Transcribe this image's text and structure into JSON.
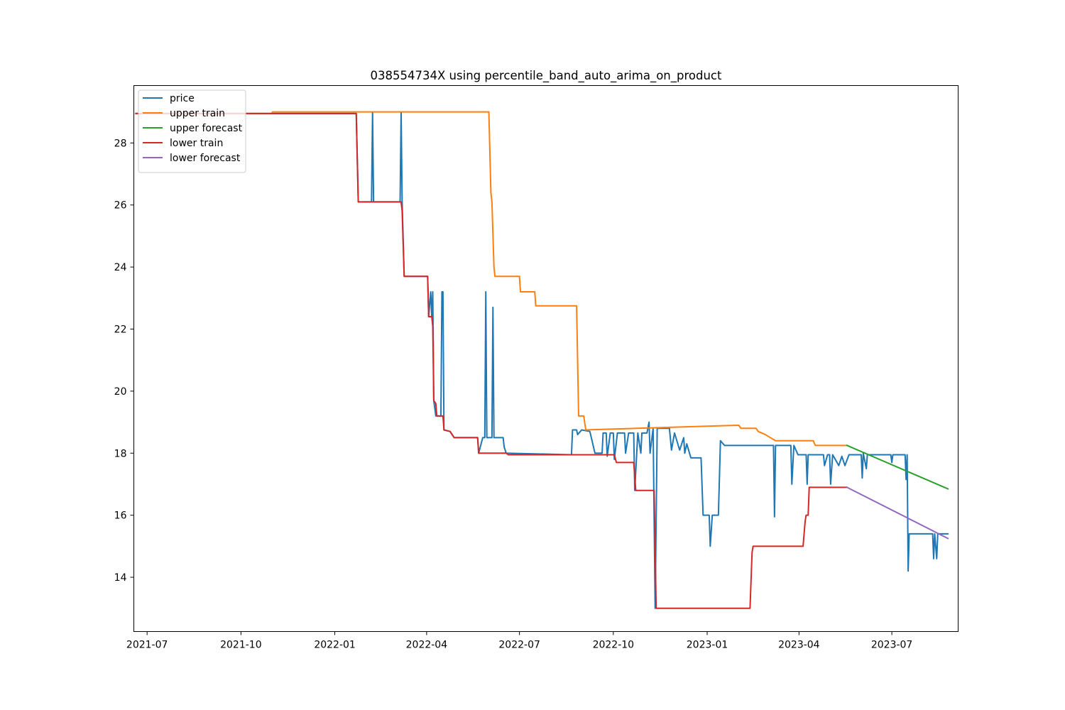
{
  "chart_data": {
    "type": "line",
    "title": "038554734X using percentile_band_auto_arima_on_product",
    "xlabel": "",
    "ylabel": "",
    "xlim": [
      "2021-06-18",
      "2023-09-04"
    ],
    "ylim": [
      12.25,
      29.85
    ],
    "x_ticks": [
      "2021-07-01",
      "2021-10-01",
      "2022-01-01",
      "2022-04-01",
      "2022-07-01",
      "2022-10-01",
      "2023-01-01",
      "2023-04-01",
      "2023-07-01"
    ],
    "x_tick_labels": [
      "2021-07",
      "2021-10",
      "2022-01",
      "2022-04",
      "2022-07",
      "2022-10",
      "2023-01",
      "2023-04",
      "2023-07"
    ],
    "y_ticks": [
      14,
      16,
      18,
      20,
      22,
      24,
      26,
      28
    ],
    "y_tick_labels": [
      "14",
      "16",
      "18",
      "20",
      "22",
      "24",
      "26",
      "28"
    ],
    "grid": false,
    "legend_position": "upper-left",
    "series": [
      {
        "name": "price",
        "color": "#1f77b4",
        "points": [
          [
            "2021-06-20",
            28.95
          ],
          [
            "2022-01-22",
            28.95
          ],
          [
            "2022-01-24",
            26.1
          ],
          [
            "2022-02-06",
            26.1
          ],
          [
            "2022-02-07",
            29.0
          ],
          [
            "2022-02-08",
            26.1
          ],
          [
            "2022-03-06",
            26.1
          ],
          [
            "2022-03-07",
            29.0
          ],
          [
            "2022-03-08",
            26.1
          ],
          [
            "2022-03-10",
            23.7
          ],
          [
            "2022-04-02",
            23.7
          ],
          [
            "2022-04-03",
            22.4
          ],
          [
            "2022-04-05",
            23.2
          ],
          [
            "2022-04-06",
            22.4
          ],
          [
            "2022-04-07",
            23.2
          ],
          [
            "2022-04-08",
            19.7
          ],
          [
            "2022-04-10",
            19.2
          ],
          [
            "2022-04-15",
            19.2
          ],
          [
            "2022-04-16",
            23.2
          ],
          [
            "2022-04-17",
            23.2
          ],
          [
            "2022-04-18",
            18.75
          ],
          [
            "2022-04-24",
            18.7
          ],
          [
            "2022-04-28",
            18.5
          ],
          [
            "2022-05-21",
            18.5
          ],
          [
            "2022-05-22",
            18.0
          ],
          [
            "2022-05-26",
            18.5
          ],
          [
            "2022-05-28",
            18.5
          ],
          [
            "2022-05-29",
            23.2
          ],
          [
            "2022-05-30",
            18.5
          ],
          [
            "2022-06-04",
            18.5
          ],
          [
            "2022-06-05",
            22.7
          ],
          [
            "2022-06-06",
            18.5
          ],
          [
            "2022-06-15",
            18.5
          ],
          [
            "2022-06-16",
            18.2
          ],
          [
            "2022-06-18",
            18.0
          ],
          [
            "2022-08-21",
            17.95
          ],
          [
            "2022-08-22",
            18.75
          ],
          [
            "2022-08-26",
            18.75
          ],
          [
            "2022-08-27",
            18.6
          ],
          [
            "2022-08-31",
            18.75
          ],
          [
            "2022-09-08",
            18.7
          ],
          [
            "2022-09-13",
            18.0
          ],
          [
            "2022-09-20",
            18.0
          ],
          [
            "2022-09-21",
            18.65
          ],
          [
            "2022-09-24",
            18.65
          ],
          [
            "2022-09-25",
            17.9
          ],
          [
            "2022-09-28",
            18.65
          ],
          [
            "2022-10-01",
            18.65
          ],
          [
            "2022-10-02",
            17.8
          ],
          [
            "2022-10-05",
            18.65
          ],
          [
            "2022-10-12",
            18.65
          ],
          [
            "2022-10-13",
            18.0
          ],
          [
            "2022-10-16",
            18.65
          ],
          [
            "2022-10-21",
            18.65
          ],
          [
            "2022-10-22",
            16.8
          ],
          [
            "2022-10-25",
            18.65
          ],
          [
            "2022-10-28",
            18.0
          ],
          [
            "2022-10-29",
            18.65
          ],
          [
            "2022-11-03",
            18.65
          ],
          [
            "2022-11-05",
            19.0
          ],
          [
            "2022-11-06",
            18.0
          ],
          [
            "2022-11-09",
            18.8
          ],
          [
            "2022-11-11",
            13.0
          ],
          [
            "2022-11-13",
            18.8
          ],
          [
            "2022-11-25",
            18.8
          ],
          [
            "2022-11-27",
            18.1
          ],
          [
            "2022-11-30",
            18.65
          ],
          [
            "2022-12-05",
            18.1
          ],
          [
            "2022-12-09",
            18.5
          ],
          [
            "2022-12-10",
            18.0
          ],
          [
            "2022-12-12",
            18.3
          ],
          [
            "2022-12-16",
            17.85
          ],
          [
            "2022-12-26",
            17.85
          ],
          [
            "2022-12-28",
            16.0
          ],
          [
            "2023-01-03",
            16.0
          ],
          [
            "2023-01-04",
            15.0
          ],
          [
            "2023-01-06",
            16.0
          ],
          [
            "2023-01-12",
            16.0
          ],
          [
            "2023-01-14",
            18.4
          ],
          [
            "2023-01-18",
            18.25
          ],
          [
            "2023-03-07",
            18.25
          ],
          [
            "2023-03-08",
            15.95
          ],
          [
            "2023-03-09",
            18.25
          ],
          [
            "2023-03-24",
            18.25
          ],
          [
            "2023-03-25",
            17.0
          ],
          [
            "2023-03-27",
            18.25
          ],
          [
            "2023-03-31",
            17.95
          ],
          [
            "2023-04-08",
            17.95
          ],
          [
            "2023-04-09",
            17.0
          ],
          [
            "2023-04-10",
            17.95
          ],
          [
            "2023-04-25",
            17.95
          ],
          [
            "2023-04-26",
            17.6
          ],
          [
            "2023-04-29",
            17.95
          ],
          [
            "2023-05-01",
            17.95
          ],
          [
            "2023-05-02",
            17.0
          ],
          [
            "2023-05-04",
            17.95
          ],
          [
            "2023-05-10",
            17.6
          ],
          [
            "2023-05-13",
            17.9
          ],
          [
            "2023-05-16",
            17.6
          ],
          [
            "2023-05-20",
            17.95
          ],
          [
            "2023-06-01",
            17.95
          ],
          [
            "2023-06-02",
            17.2
          ],
          [
            "2023-06-03",
            18.0
          ],
          [
            "2023-06-06",
            17.5
          ],
          [
            "2023-06-07",
            17.95
          ],
          [
            "2023-06-30",
            17.95
          ],
          [
            "2023-07-01",
            17.7
          ],
          [
            "2023-07-02",
            17.95
          ],
          [
            "2023-07-14",
            17.95
          ],
          [
            "2023-07-15",
            17.15
          ],
          [
            "2023-07-16",
            17.95
          ],
          [
            "2023-07-17",
            14.2
          ],
          [
            "2023-07-18",
            15.4
          ],
          [
            "2023-08-10",
            15.4
          ],
          [
            "2023-08-11",
            14.6
          ],
          [
            "2023-08-12",
            15.4
          ],
          [
            "2023-08-14",
            14.6
          ],
          [
            "2023-08-15",
            15.4
          ],
          [
            "2023-08-25",
            15.4
          ]
        ]
      },
      {
        "name": "upper train",
        "color": "#ff7f0e",
        "points": [
          [
            "2021-06-20",
            28.95
          ],
          [
            "2021-10-31",
            28.95
          ],
          [
            "2021-11-01",
            29.0
          ],
          [
            "2022-06-01",
            29.0
          ],
          [
            "2022-06-03",
            26.4
          ],
          [
            "2022-06-04",
            26.1
          ],
          [
            "2022-06-06",
            24.0
          ],
          [
            "2022-06-07",
            23.7
          ],
          [
            "2022-07-01",
            23.7
          ],
          [
            "2022-07-02",
            23.2
          ],
          [
            "2022-07-16",
            23.2
          ],
          [
            "2022-07-17",
            22.75
          ],
          [
            "2022-08-26",
            22.75
          ],
          [
            "2022-08-28",
            19.2
          ],
          [
            "2022-09-02",
            19.2
          ],
          [
            "2022-09-04",
            18.75
          ],
          [
            "2023-02-01",
            18.9
          ],
          [
            "2023-02-03",
            18.8
          ],
          [
            "2023-02-18",
            18.8
          ],
          [
            "2023-02-20",
            18.7
          ],
          [
            "2023-02-27",
            18.6
          ],
          [
            "2023-03-04",
            18.5
          ],
          [
            "2023-03-09",
            18.4
          ],
          [
            "2023-04-15",
            18.4
          ],
          [
            "2023-04-17",
            18.25
          ],
          [
            "2023-05-18",
            18.25
          ]
        ]
      },
      {
        "name": "upper forecast",
        "color": "#2ca02c",
        "points": [
          [
            "2023-05-18",
            18.25
          ],
          [
            "2023-08-25",
            16.85
          ]
        ]
      },
      {
        "name": "lower train",
        "color": "#d62728",
        "points": [
          [
            "2021-06-20",
            28.95
          ],
          [
            "2022-01-22",
            28.95
          ],
          [
            "2022-01-24",
            26.1
          ],
          [
            "2022-03-07",
            26.1
          ],
          [
            "2022-03-08",
            25.8
          ],
          [
            "2022-03-10",
            23.7
          ],
          [
            "2022-04-02",
            23.7
          ],
          [
            "2022-04-03",
            22.4
          ],
          [
            "2022-04-06",
            22.4
          ],
          [
            "2022-04-07",
            22.1
          ],
          [
            "2022-04-08",
            19.7
          ],
          [
            "2022-04-10",
            19.6
          ],
          [
            "2022-04-11",
            19.2
          ],
          [
            "2022-04-17",
            19.2
          ],
          [
            "2022-04-18",
            18.75
          ],
          [
            "2022-04-24",
            18.7
          ],
          [
            "2022-04-28",
            18.5
          ],
          [
            "2022-05-21",
            18.5
          ],
          [
            "2022-05-22",
            18.0
          ],
          [
            "2022-06-18",
            18.0
          ],
          [
            "2022-06-20",
            17.95
          ],
          [
            "2022-10-02",
            17.95
          ],
          [
            "2022-10-04",
            17.7
          ],
          [
            "2022-10-21",
            17.7
          ],
          [
            "2022-10-23",
            16.8
          ],
          [
            "2022-11-10",
            16.8
          ],
          [
            "2022-11-12",
            13.0
          ],
          [
            "2023-02-12",
            13.0
          ],
          [
            "2023-02-14",
            14.8
          ],
          [
            "2023-02-15",
            15.0
          ],
          [
            "2023-04-05",
            15.0
          ],
          [
            "2023-04-07",
            15.8
          ],
          [
            "2023-04-08",
            16.0
          ],
          [
            "2023-04-10",
            16.0
          ],
          [
            "2023-04-11",
            16.9
          ],
          [
            "2023-05-18",
            16.9
          ]
        ]
      },
      {
        "name": "lower forecast",
        "color": "#9467bd",
        "points": [
          [
            "2023-05-18",
            16.9
          ],
          [
            "2023-08-25",
            15.25
          ]
        ]
      }
    ]
  }
}
